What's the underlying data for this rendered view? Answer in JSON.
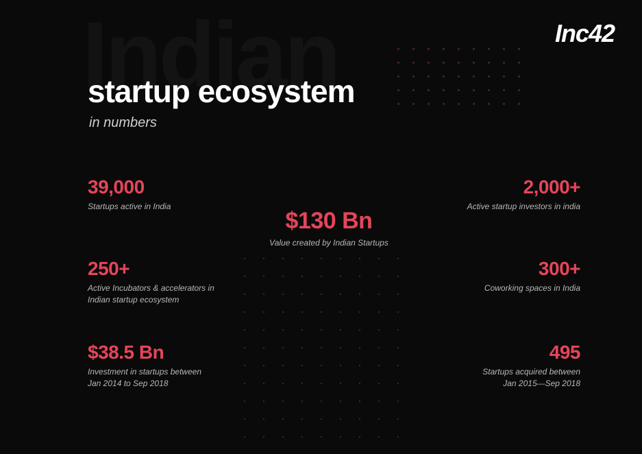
{
  "logo": "Inc42",
  "watermark": "Indian",
  "title": "startup ecosystem",
  "subtitle": "in numbers",
  "accent_color": "#e5455a",
  "background_color": "#0b0a0a",
  "text_color": "#ffffff",
  "label_color": "#b8b8b8",
  "stats": {
    "startups_active": {
      "value": "39,000",
      "label": "Startups active in India"
    },
    "value_created": {
      "value": "$130 Bn",
      "label": "Value created by Indian Startups"
    },
    "active_investors": {
      "value": "2,000+",
      "label": "Active startup investors in india"
    },
    "incubators": {
      "value": "250+",
      "label": "Active Incubators & accelerators in\nIndian startup ecosystem"
    },
    "coworking": {
      "value": "300+",
      "label": "Coworking spaces in India"
    },
    "investment": {
      "value": "$38.5 Bn",
      "label": "Investment in startups between\nJan 2014 to Sep 2018"
    },
    "acquired": {
      "value": "495",
      "label": "Startups acquired between\nJan 2015—Sep 2018"
    }
  },
  "layout": {
    "dots_top": {
      "rows": 5,
      "cols": 9,
      "color": "#4a2530"
    },
    "dots_bottom": {
      "rows": 11,
      "cols": 9,
      "color": "#3a3a3a"
    }
  }
}
